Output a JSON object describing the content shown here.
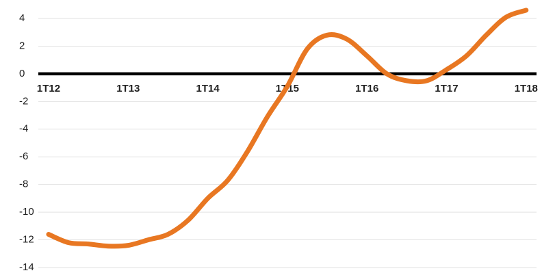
{
  "chart_data": {
    "type": "line",
    "title": "",
    "xlabel": "",
    "ylabel": "",
    "ylim": [
      -14,
      4
    ],
    "yticks": [
      4,
      2,
      0,
      -2,
      -4,
      -6,
      -8,
      -10,
      -12,
      -14
    ],
    "xticks": [
      "1T12",
      "1T13",
      "1T14",
      "1T15",
      "1T16",
      "1T17",
      "1T18"
    ],
    "grid": true,
    "legend": "none",
    "series": [
      {
        "color": "#E87722",
        "points": [
          {
            "x": 0.0,
            "y": -11.6
          },
          {
            "x": 0.25,
            "y": -12.2
          },
          {
            "x": 0.5,
            "y": -12.3
          },
          {
            "x": 0.75,
            "y": -12.45
          },
          {
            "x": 1.0,
            "y": -12.4
          },
          {
            "x": 1.25,
            "y": -12.0
          },
          {
            "x": 1.5,
            "y": -11.6
          },
          {
            "x": 1.75,
            "y": -10.6
          },
          {
            "x": 2.0,
            "y": -9.0
          },
          {
            "x": 2.25,
            "y": -7.7
          },
          {
            "x": 2.5,
            "y": -5.6
          },
          {
            "x": 2.75,
            "y": -3.1
          },
          {
            "x": 3.0,
            "y": -0.9
          },
          {
            "x": 3.25,
            "y": 1.8
          },
          {
            "x": 3.5,
            "y": 2.8
          },
          {
            "x": 3.75,
            "y": 2.5
          },
          {
            "x": 4.0,
            "y": 1.3
          },
          {
            "x": 4.25,
            "y": 0.0
          },
          {
            "x": 4.5,
            "y": -0.5
          },
          {
            "x": 4.75,
            "y": -0.5
          },
          {
            "x": 5.0,
            "y": 0.3
          },
          {
            "x": 5.25,
            "y": 1.3
          },
          {
            "x": 5.5,
            "y": 2.8
          },
          {
            "x": 5.75,
            "y": 4.1
          },
          {
            "x": 6.0,
            "y": 4.6
          }
        ]
      }
    ]
  }
}
